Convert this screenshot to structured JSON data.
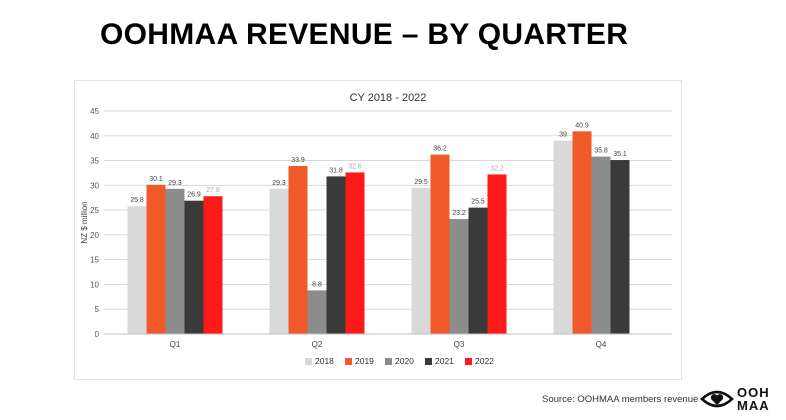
{
  "page": {
    "title": "OOHMAA REVENUE – BY QUARTER",
    "source": "Source: OOHMAA members revenue",
    "logo_text": [
      "OOH",
      "MAA"
    ]
  },
  "chart_data": {
    "type": "bar",
    "title": "CY 2018 - 2022",
    "ylabel": "NZ $ million",
    "xlabel": "",
    "ylim": [
      0,
      45
    ],
    "yticks": [
      0,
      5,
      10,
      15,
      20,
      25,
      30,
      35,
      40,
      45
    ],
    "grid": true,
    "legend": "bottom",
    "categories": [
      "Q1",
      "Q2",
      "Q3",
      "Q4"
    ],
    "series": [
      {
        "name": "2018",
        "color": "#d9d9d9",
        "values": [
          25.8,
          29.3,
          29.5,
          39
        ]
      },
      {
        "name": "2019",
        "color": "#f05a28",
        "values": [
          30.1,
          33.9,
          36.2,
          40.9
        ]
      },
      {
        "name": "2020",
        "color": "#8c8c8c",
        "values": [
          29.3,
          8.8,
          23.2,
          35.8
        ]
      },
      {
        "name": "2021",
        "color": "#3a3a3a",
        "values": [
          26.9,
          31.8,
          25.5,
          35.1
        ]
      },
      {
        "name": "2022",
        "color": "#ff1a1a",
        "values": [
          27.8,
          32.6,
          32.2,
          null
        ]
      }
    ],
    "data_labels": [
      [
        "25.8",
        "30.1",
        "29.3",
        "26.9",
        "27.8"
      ],
      [
        "29.3",
        "33.9",
        "8.8",
        "31.8",
        "32.6"
      ],
      [
        "29.5",
        "36.2",
        "23.2",
        "25.5",
        "32.2"
      ],
      [
        "39",
        "40.9",
        "35.8",
        "35.1",
        ""
      ]
    ]
  }
}
